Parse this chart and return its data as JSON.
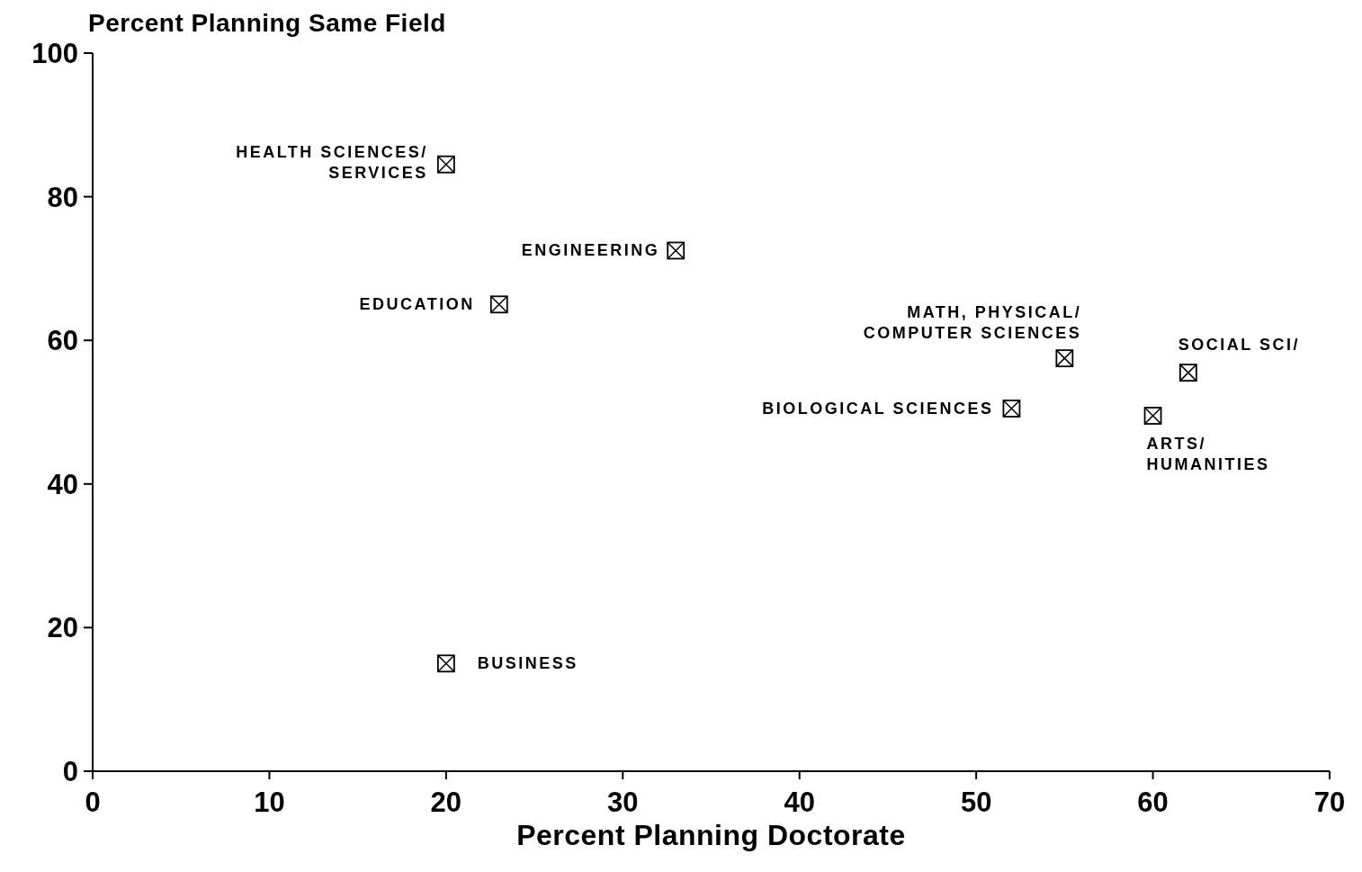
{
  "chart_data": {
    "type": "scatter",
    "xlabel": "Percent Planning Doctorate",
    "ylabel": "Percent Planning Same Field",
    "x": [
      20,
      33,
      23,
      55,
      52,
      62,
      60,
      20
    ],
    "values": [
      84.5,
      72.5,
      65,
      57.5,
      50.5,
      55.5,
      49.5,
      15
    ],
    "color": "#000000",
    "marker": "square",
    "xlim": [
      0,
      70
    ],
    "xticks": [
      0,
      10,
      20,
      30,
      40,
      50,
      60,
      70
    ],
    "ylim": [
      0,
      100
    ],
    "yticks": [
      0,
      20,
      40,
      60,
      80,
      100
    ],
    "grid": false,
    "legend": false,
    "annotations": [
      {
        "text": "HEALTH SCIENCES/\nSERVICES",
        "x": 20,
        "y": 84.5
      },
      {
        "text": "ENGINEERING",
        "x": 33,
        "y": 72.5
      },
      {
        "text": "EDUCATION",
        "x": 23,
        "y": 65
      },
      {
        "text": "MATH, PHYSICAL/\nCOMPUTER SCIENCES",
        "x": 55,
        "y": 57.5
      },
      {
        "text": "BIOLOGICAL SCIENCES",
        "x": 52,
        "y": 50.5
      },
      {
        "text": "SOCIAL SCI/",
        "x": 62,
        "y": 55.5
      },
      {
        "text": "ARTS/\nHUMANITIES",
        "x": 60,
        "y": 49.5
      },
      {
        "text": "BUSINESS",
        "x": 20,
        "y": 15
      }
    ]
  }
}
